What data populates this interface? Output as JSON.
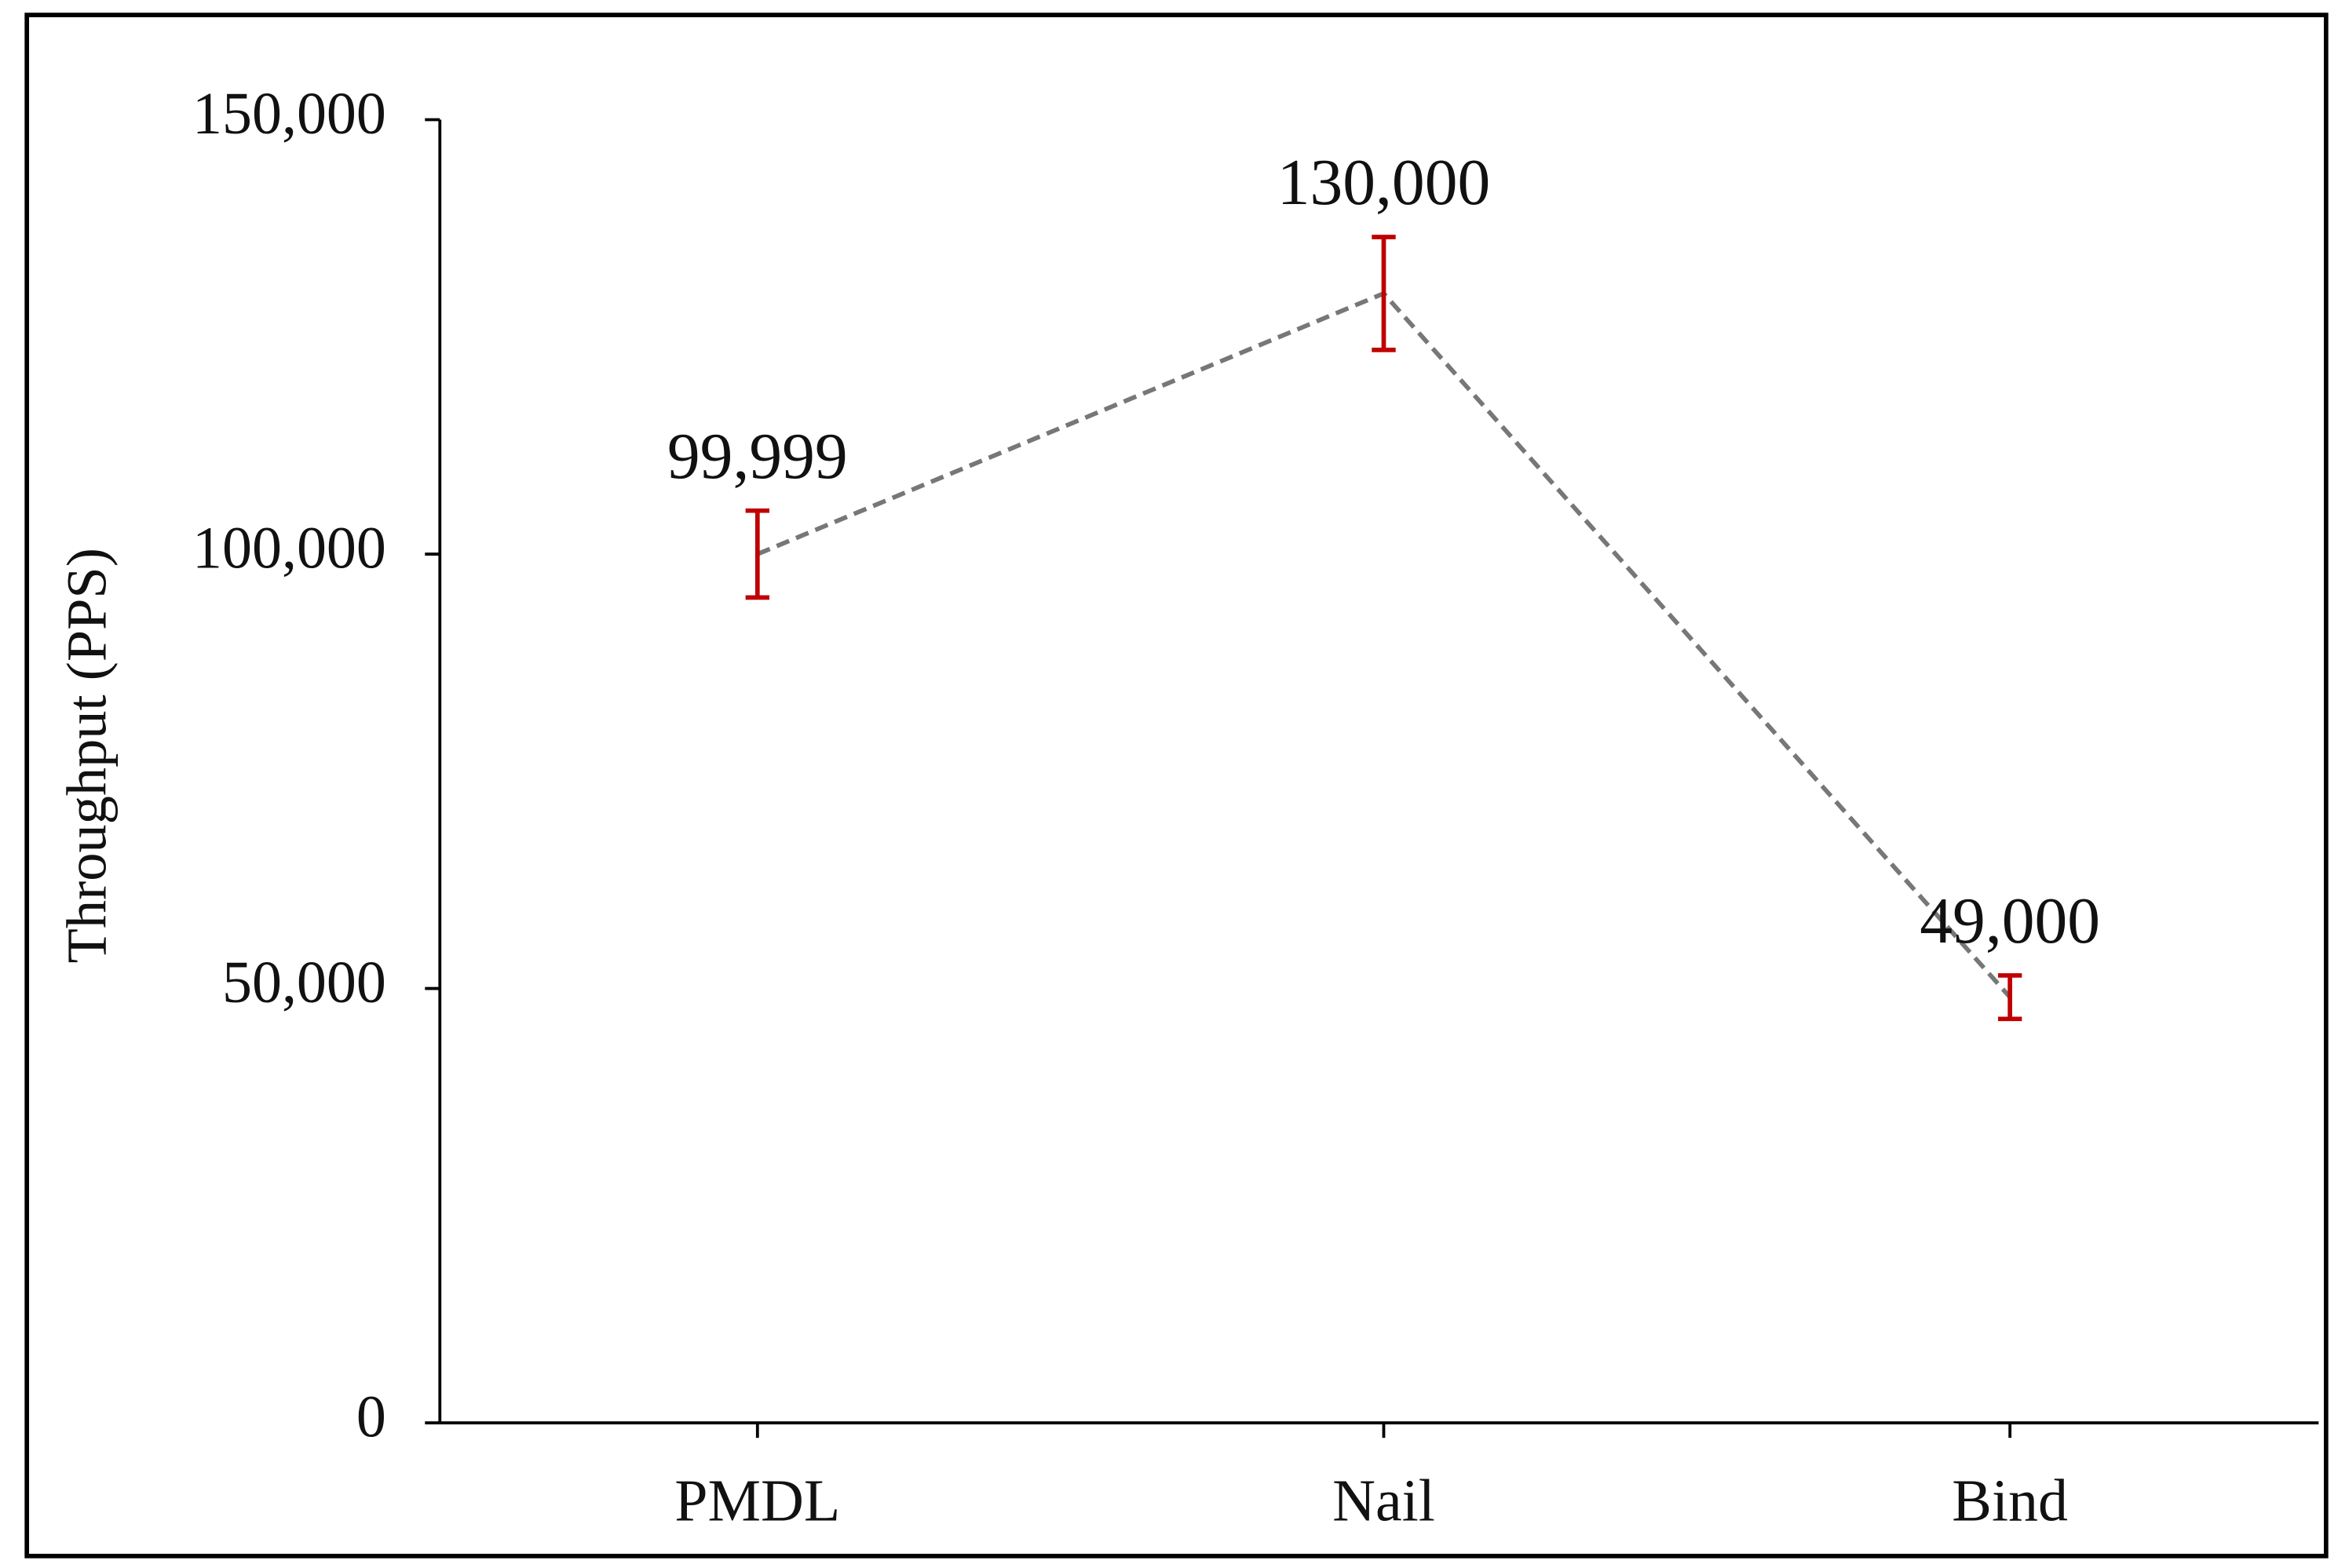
{
  "chart_data": {
    "type": "line",
    "y_label": "Throughput (PPS)",
    "categories": [
      "PMDL",
      "Nail",
      "Bind"
    ],
    "series": [
      {
        "color": "#777777",
        "values": [
          99999,
          130000,
          49000
        ],
        "value_labels": [
          "99,999",
          "130,000",
          "49,000"
        ],
        "errors": [
          5000,
          6500,
          2500
        ],
        "error_color": "#c00000"
      }
    ],
    "ylim": [
      0,
      150000
    ],
    "yticks": [
      0,
      {
        "value": 50000,
        "label": "50,000"
      },
      {
        "value": 100000,
        "label": "100,000"
      },
      {
        "value": 150000,
        "label": "150,000"
      }
    ]
  }
}
